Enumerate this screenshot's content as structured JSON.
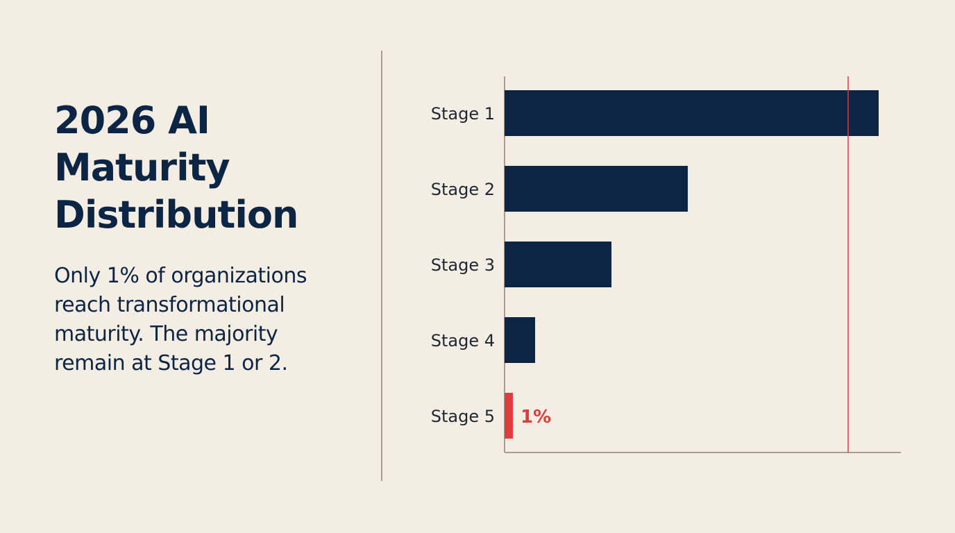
{
  "heading": {
    "title": "2026 AI Maturity Distribution",
    "subtitle": "Only 1% of organizations reach transformational maturity. The majority remain at Stage 1 or 2."
  },
  "colors": {
    "background": "#f3ede3",
    "bar": "#0c2545",
    "highlight": "#dc3d3d",
    "axis": "#a89d8f",
    "text": "#0c2545"
  },
  "chart_data": {
    "type": "bar",
    "orientation": "horizontal",
    "title": "",
    "xlabel": "",
    "ylabel": "",
    "categories": [
      "Stage 1",
      "Stage 2",
      "Stage 3",
      "Stage 4",
      "Stage 5"
    ],
    "values": [
      49,
      24,
      14,
      4,
      1
    ],
    "data_labels": [
      "",
      "",
      "",
      "",
      "1%"
    ],
    "highlight_index": 4,
    "xlim": [
      0,
      52
    ],
    "reference_line": 45,
    "grid": false
  }
}
